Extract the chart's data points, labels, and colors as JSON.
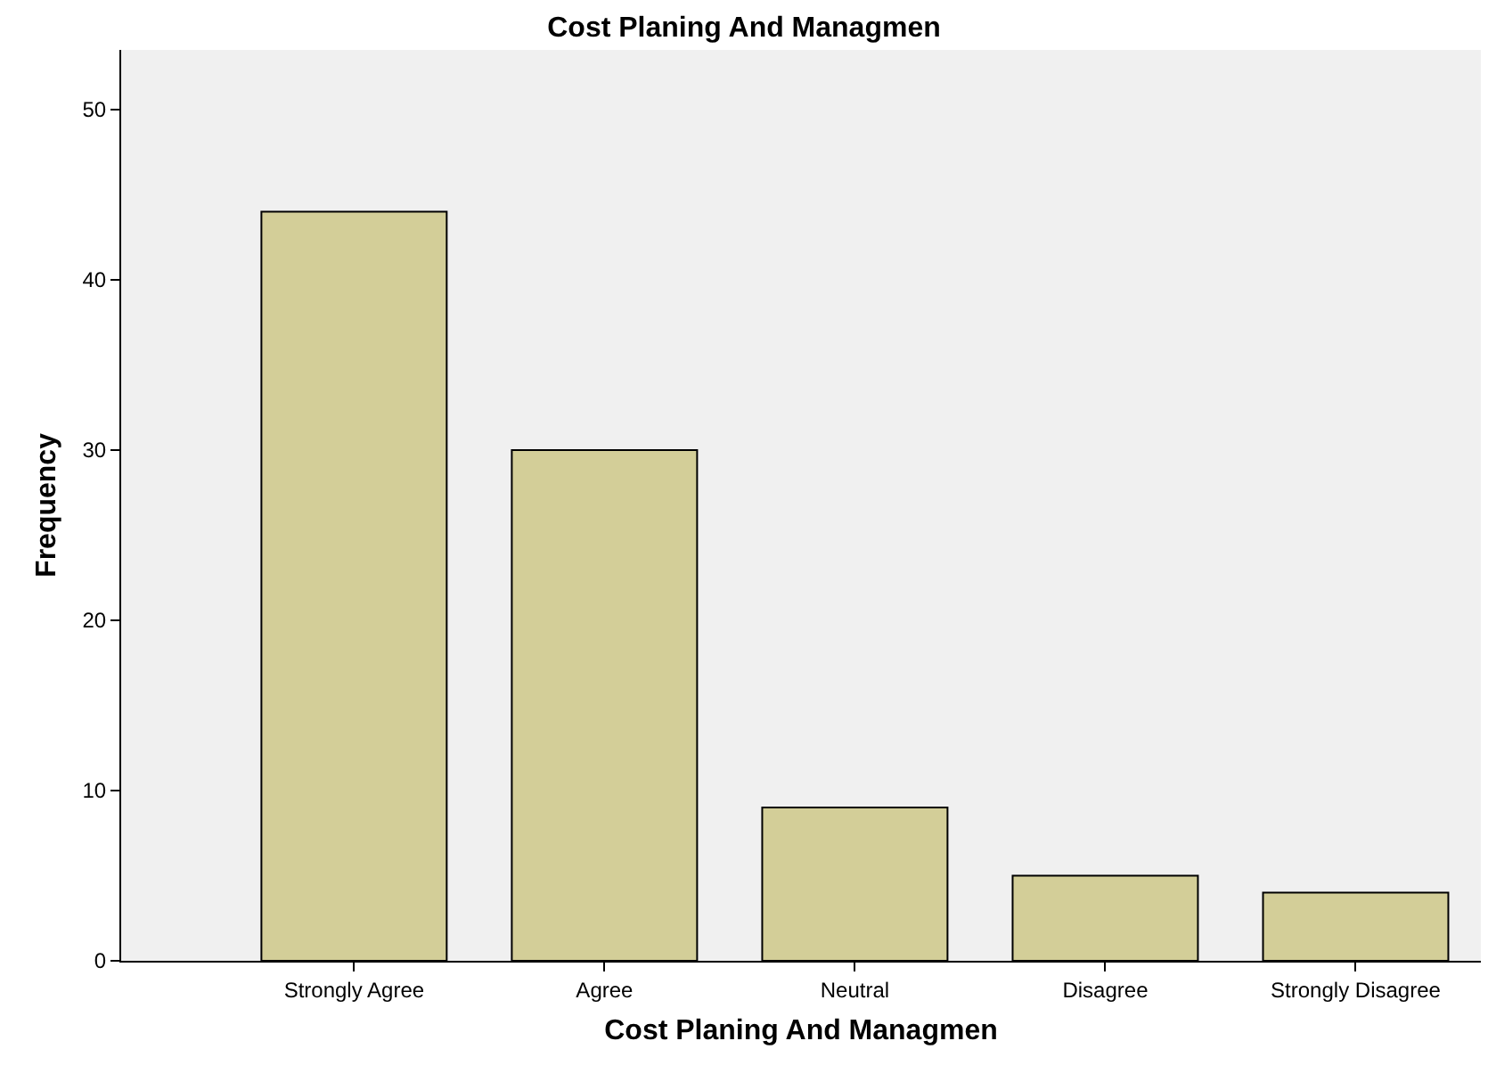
{
  "chart_data": {
    "type": "bar",
    "title": "Cost Planing And Managmen",
    "xlabel": "Cost Planing And Managmen",
    "ylabel": "Frequency",
    "categories": [
      "Strongly Agree",
      "Agree",
      "Neutral",
      "Disagree",
      "Strongly Disagree"
    ],
    "values": [
      44,
      30,
      9,
      5,
      4
    ],
    "color": "#d3ce98",
    "ylim": [
      0,
      53.5
    ],
    "yticks": [
      0,
      10,
      20,
      30,
      40,
      50
    ],
    "grid": false,
    "legend": false
  }
}
